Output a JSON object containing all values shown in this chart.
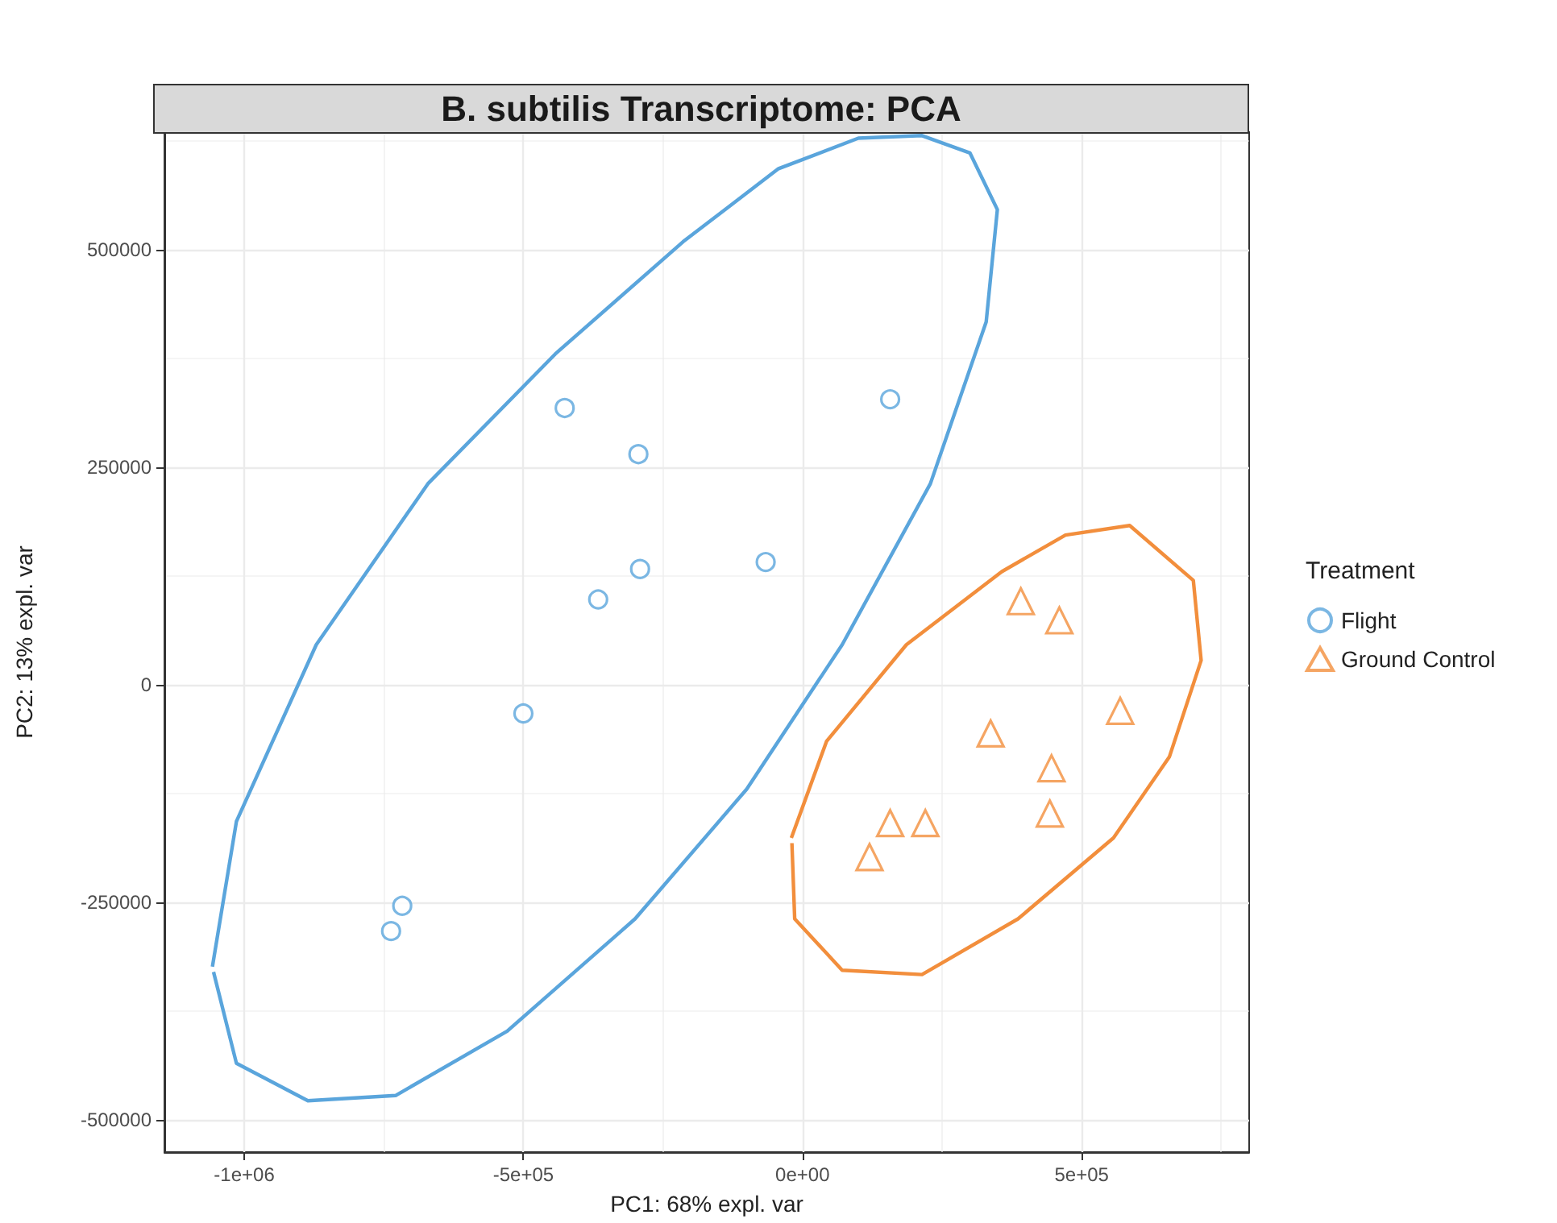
{
  "chart_data": {
    "type": "scatter",
    "title": "B. subtilis Transcriptome: PCA",
    "xlabel": "PC1: 68% expl. var",
    "ylabel": "PC2: 13% expl. var",
    "legend_title": "Treatment",
    "legend": "right",
    "grid": true,
    "xlim": [
      -1143000,
      800000
    ],
    "ylim": [
      -537000,
      635000
    ],
    "xticks": [
      {
        "value": -1000000,
        "label": "-1e+06"
      },
      {
        "value": -500000,
        "label": "-5e+05"
      },
      {
        "value": 0,
        "label": "0e+00"
      },
      {
        "value": 500000,
        "label": "5e+05"
      }
    ],
    "yticks": [
      -500000,
      -250000,
      0,
      250000,
      500000
    ],
    "series": [
      {
        "name": "Flight",
        "type": "scatter",
        "marker": "circle",
        "color": "#5aa5dc",
        "x": [
          -426000,
          -294000,
          157000,
          -291000,
          -66000,
          -366000,
          -500000,
          -717000,
          -737000
        ],
        "values": [
          318000,
          265000,
          328000,
          133000,
          141000,
          98000,
          -33000,
          -254000,
          -283000
        ]
      },
      {
        "name": "Ground Control",
        "type": "scatter",
        "marker": "triangle",
        "color": "#f28e3c",
        "x": [
          391000,
          460000,
          569000,
          337000,
          446000,
          443000,
          157000,
          220000,
          120000
        ],
        "values": [
          96000,
          74000,
          -30000,
          -56000,
          -96000,
          -148000,
          -159000,
          -159000,
          -198000
        ]
      },
      {
        "type": "line",
        "marker": "none",
        "color": "#5aa5dc",
        "x": [
          -1057000,
          -1014000,
          -871000,
          -671000,
          -443000,
          -214000,
          -43000,
          100000,
          214000,
          300000,
          349000,
          329000,
          229000,
          71000,
          -100000,
          -300000,
          -529000,
          -729000,
          -886000,
          -1014000,
          -1055000
        ],
        "values": [
          -324000,
          -157000,
          46000,
          231000,
          380000,
          509000,
          593000,
          628000,
          631000,
          611000,
          546000,
          417000,
          231000,
          46000,
          -120000,
          -269000,
          -398000,
          -472000,
          -478000,
          -435000,
          -330000
        ]
      },
      {
        "type": "line",
        "marker": "none",
        "color": "#f28e3c",
        "x": [
          -20000,
          43000,
          186000,
          357000,
          471000,
          586000,
          700000,
          714000,
          657000,
          557000,
          386000,
          214000,
          71000,
          -14000,
          -19000
        ],
        "values": [
          -176000,
          -65000,
          46000,
          130000,
          172000,
          183000,
          120000,
          28000,
          -83000,
          -176000,
          -269000,
          -333000,
          -328000,
          -269000,
          -182000
        ]
      }
    ]
  }
}
